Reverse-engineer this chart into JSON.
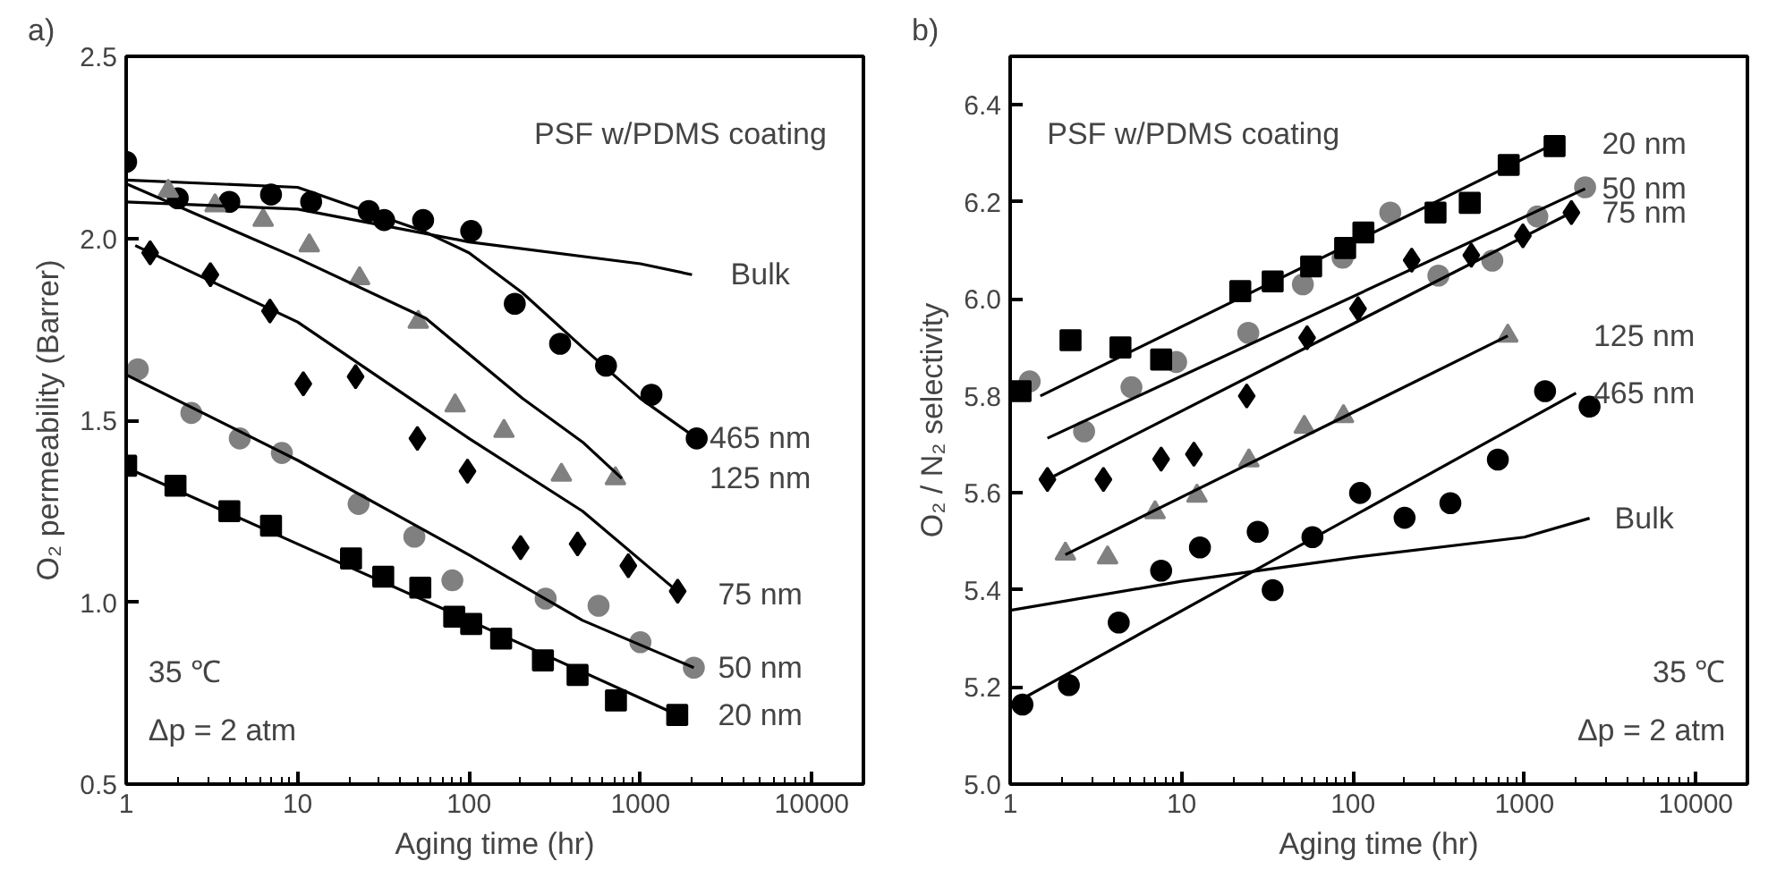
{
  "chart_data": [
    {
      "type": "scatter",
      "title": "a)",
      "xlabel": "Aging time (hr)",
      "ylabel": "O₂ permeability (Barrer)",
      "log": "x",
      "grid": false,
      "xlim": [
        1,
        20000
      ],
      "xticks": [
        1,
        10,
        100,
        1000,
        10000
      ],
      "ylim": [
        0.5,
        2.5
      ],
      "yticks": [
        0.5,
        {
          "value": 1.0,
          "label": "1.0"
        },
        1.5,
        {
          "value": 2.0,
          "label": "2.0"
        },
        2.5
      ],
      "series": [
        {
          "marker": "circle",
          "color": "#000000",
          "x": [
            1,
            2,
            4,
            7,
            12,
            26,
            32,
            54,
            103,
            185,
            340,
            630,
            1160,
            2130
          ],
          "values": [
            2.21,
            2.11,
            2.1,
            2.12,
            2.1,
            2.075,
            2.05,
            2.05,
            2.02,
            1.82,
            1.71,
            1.65,
            1.57,
            1.45
          ]
        },
        {
          "type": "line",
          "name": "465 nm",
          "color": "#000000",
          "x": [
            1,
            10,
            54,
            100,
            205,
            460,
            1000,
            2130
          ],
          "values": [
            2.16,
            2.14,
            2.02,
            1.96,
            1.85,
            1.7,
            1.56,
            1.45
          ]
        },
        {
          "marker": "triangle",
          "color": "#808080",
          "x": [
            1.76,
            3.3,
            6.3,
            11.7,
            23,
            50.6,
            83,
            160,
            346,
            715
          ],
          "values": [
            2.13,
            2.09,
            2.05,
            1.98,
            1.89,
            1.77,
            1.54,
            1.47,
            1.35,
            1.34
          ]
        },
        {
          "type": "line",
          "name": "125 nm",
          "color": "#000000",
          "x": [
            1,
            10,
            56,
            205,
            460,
            780
          ],
          "values": [
            2.15,
            1.945,
            1.78,
            1.56,
            1.44,
            1.34
          ]
        },
        {
          "marker": "diamond",
          "color": "#000000",
          "x": [
            1.38,
            3.1,
            6.9,
            10.8,
            21.8,
            50,
            98,
            200,
            430,
            850,
            1650
          ],
          "values": [
            1.96,
            1.9,
            1.8,
            1.6,
            1.62,
            1.45,
            1.36,
            1.15,
            1.16,
            1.1,
            1.03
          ]
        },
        {
          "type": "line",
          "name": "75 nm",
          "color": "#000000",
          "x": [
            1.13,
            10,
            100,
            460,
            1740
          ],
          "values": [
            1.98,
            1.77,
            1.45,
            1.25,
            1.02
          ]
        },
        {
          "marker": "circle",
          "color": "#808080",
          "x": [
            1.17,
            2.4,
            4.6,
            8.1,
            22.7,
            48,
            80,
            280,
            570,
            1000,
            2050
          ],
          "values": [
            1.64,
            1.52,
            1.45,
            1.41,
            1.27,
            1.18,
            1.06,
            1.01,
            0.99,
            0.89,
            0.82
          ]
        },
        {
          "type": "line",
          "name": "50 nm",
          "color": "#000000",
          "x": [
            1,
            10,
            100,
            460,
            2050
          ],
          "values": [
            1.625,
            1.39,
            1.13,
            0.95,
            0.82
          ]
        },
        {
          "marker": "square",
          "color": "#000000",
          "x": [
            1,
            1.94,
            4,
            7,
            20.5,
            31.6,
            52,
            82,
            103,
            154,
            270,
            430,
            720,
            1640
          ],
          "values": [
            1.375,
            1.32,
            1.25,
            1.21,
            1.12,
            1.07,
            1.04,
            0.96,
            0.94,
            0.9,
            0.84,
            0.8,
            0.73,
            0.69
          ]
        },
        {
          "type": "line",
          "name": "20 nm",
          "color": "#000000",
          "x": [
            1,
            10,
            100,
            1650
          ],
          "values": [
            1.37,
            1.16,
            0.95,
            0.69
          ]
        },
        {
          "type": "line",
          "name": "Bulk",
          "color": "#000000",
          "x": [
            1,
            10,
            100,
            1000,
            2000
          ],
          "values": [
            2.1,
            2.08,
            1.99,
            1.93,
            1.9
          ]
        }
      ],
      "annotations": [
        "PSF w/PDMS coating",
        "35 ℃",
        "Δp = 2 atm"
      ]
    },
    {
      "type": "scatter",
      "title": "b)",
      "xlabel": "Aging time (hr)",
      "ylabel": "O₂ / N₂ selectivity",
      "log": "x",
      "grid": false,
      "xlim": [
        1,
        20000
      ],
      "xticks": [
        1,
        10,
        100,
        1000,
        10000
      ],
      "ylim": [
        5.0,
        6.5
      ],
      "yticks": [
        {
          "value": 5.0,
          "label": "5.0"
        },
        5.2,
        5.4,
        5.6,
        5.8,
        {
          "value": 6.0,
          "label": "6.0"
        },
        6.2,
        6.4
      ],
      "series": [
        {
          "marker": "circle",
          "color": "#808080",
          "x": [
            1.3,
            2.7,
            5.1,
            9.3,
            24.5,
            51,
            87,
            165,
            315,
            650,
            1190,
            2260
          ],
          "values": [
            5.83,
            5.727,
            5.818,
            5.87,
            5.93,
            6.03,
            6.085,
            6.178,
            6.048,
            6.079,
            6.17,
            6.23
          ]
        },
        {
          "marker": "square",
          "color": "#000000",
          "x": [
            1.15,
            2.25,
            4.4,
            7.6,
            22,
            34,
            57,
            90,
            115,
            303,
            480,
            810,
            1500
          ],
          "values": [
            5.81,
            5.915,
            5.9,
            5.875,
            6.016,
            6.036,
            6.067,
            6.105,
            6.137,
            6.178,
            6.198,
            6.276,
            6.315
          ]
        },
        {
          "type": "line",
          "name": "20 nm",
          "color": "#000000",
          "x": [
            1.5,
            1500
          ],
          "values": [
            5.8,
            6.32
          ]
        },
        {
          "type": "line",
          "name": "50 nm",
          "color": "#000000",
          "x": [
            1.65,
            2260
          ],
          "values": [
            5.713,
            6.227
          ]
        },
        {
          "marker": "diamond",
          "color": "#000000",
          "x": [
            1.65,
            3.5,
            7.6,
            11.8,
            24,
            54,
            107,
            220,
            490,
            980,
            1880
          ],
          "values": [
            5.628,
            5.628,
            5.67,
            5.68,
            5.8,
            5.92,
            5.98,
            6.08,
            6.09,
            6.13,
            6.178
          ]
        },
        {
          "type": "line",
          "name": "75 nm",
          "color": "#000000",
          "x": [
            1.65,
            1880
          ],
          "values": [
            5.628,
            6.178
          ]
        },
        {
          "marker": "triangle",
          "color": "#808080",
          "x": [
            2.1,
            3.7,
            7,
            12.3,
            24.7,
            52,
            88,
            800
          ],
          "values": [
            5.475,
            5.467,
            5.56,
            5.594,
            5.667,
            5.736,
            5.758,
            5.924
          ]
        },
        {
          "type": "line",
          "name": "125 nm",
          "color": "#000000",
          "x": [
            2.1,
            800
          ],
          "values": [
            5.473,
            5.924
          ]
        },
        {
          "marker": "circle",
          "color": "#000000",
          "x": [
            1.18,
            2.2,
            4.3,
            7.6,
            12.8,
            27.8,
            34,
            58,
            110,
            200,
            370,
            700,
            1320,
            2400
          ],
          "values": [
            5.164,
            5.204,
            5.333,
            5.44,
            5.488,
            5.52,
            5.4,
            5.509,
            5.6,
            5.549,
            5.579,
            5.669,
            5.81,
            5.778
          ]
        },
        {
          "type": "line",
          "name": "465 nm",
          "color": "#000000",
          "x": [
            1.18,
            2000
          ],
          "values": [
            5.176,
            5.806
          ]
        },
        {
          "type": "line",
          "name": "Bulk",
          "color": "#000000",
          "x": [
            1,
            10,
            100,
            1000,
            2400
          ],
          "values": [
            5.358,
            5.418,
            5.467,
            5.509,
            5.548
          ]
        }
      ],
      "annotations": [
        "PSF w/PDMS coating",
        "35 ℃",
        "Δp = 2 atm"
      ]
    }
  ]
}
